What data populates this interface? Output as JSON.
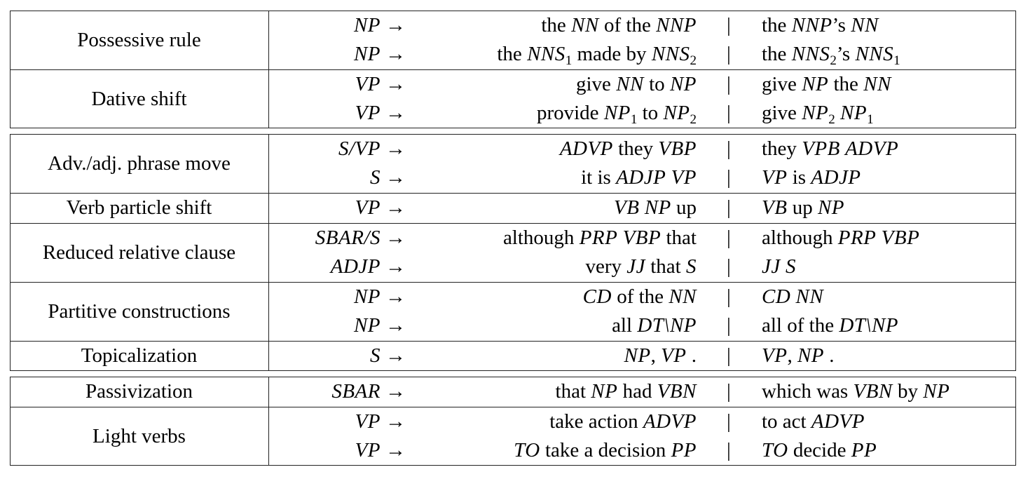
{
  "arrow": "→",
  "separator": "|",
  "groups": [
    {
      "rules": [
        {
          "name": "Possessive rule",
          "lines": [
            {
              "lhs": [
                {
                  "math": "NP"
                }
              ],
              "source": [
                "the ",
                {
                  "math": "NN"
                },
                " of the ",
                {
                  "math": "NNP"
                }
              ],
              "target": [
                "the ",
                {
                  "math": "NNP"
                },
                "’s ",
                {
                  "math": "NN"
                }
              ]
            },
            {
              "lhs": [
                {
                  "math": "NP"
                }
              ],
              "source": [
                "the ",
                {
                  "math": "NNS",
                  "sub": "1"
                },
                " made by ",
                {
                  "math": "NNS",
                  "sub": "2"
                }
              ],
              "target": [
                "the ",
                {
                  "math": "NNS",
                  "sub": "2"
                },
                "’s ",
                {
                  "math": "NNS",
                  "sub": "1"
                }
              ]
            }
          ]
        },
        {
          "name": "Dative shift",
          "lines": [
            {
              "lhs": [
                {
                  "math": "VP"
                }
              ],
              "source": [
                "give ",
                {
                  "math": "NN"
                },
                " to ",
                {
                  "math": "NP"
                }
              ],
              "target": [
                "give ",
                {
                  "math": "NP"
                },
                " the ",
                {
                  "math": "NN"
                }
              ]
            },
            {
              "lhs": [
                {
                  "math": "VP"
                }
              ],
              "source": [
                "provide ",
                {
                  "math": "NP",
                  "sub": "1"
                },
                " to ",
                {
                  "math": "NP",
                  "sub": "2"
                }
              ],
              "target": [
                "give ",
                {
                  "math": "NP",
                  "sub": "2"
                },
                " ",
                {
                  "math": "NP",
                  "sub": "1"
                }
              ]
            }
          ]
        }
      ]
    },
    {
      "rules": [
        {
          "name": "Adv./adj. phrase move",
          "lines": [
            {
              "lhs": [
                {
                  "math": "S/VP"
                }
              ],
              "source": [
                {
                  "math": "ADVP"
                },
                " they ",
                {
                  "math": "VBP"
                }
              ],
              "target": [
                "they ",
                {
                  "math": "VPB"
                },
                " ",
                {
                  "math": "ADVP"
                }
              ]
            },
            {
              "lhs": [
                {
                  "math": "S"
                }
              ],
              "source": [
                "it is ",
                {
                  "math": "ADJP"
                },
                " ",
                {
                  "math": "VP"
                }
              ],
              "target": [
                {
                  "math": "VP"
                },
                " is ",
                {
                  "math": "ADJP"
                }
              ]
            }
          ]
        },
        {
          "name": "Verb particle shift",
          "lines": [
            {
              "lhs": [
                {
                  "math": "VP"
                }
              ],
              "source": [
                {
                  "math": "VB"
                },
                " ",
                {
                  "math": "NP"
                },
                " up"
              ],
              "target": [
                {
                  "math": "VB"
                },
                " up ",
                {
                  "math": "NP"
                }
              ]
            }
          ]
        },
        {
          "name": "Reduced relative clause",
          "lines": [
            {
              "lhs": [
                {
                  "math": "SBAR/S"
                }
              ],
              "source": [
                "although ",
                {
                  "math": "PRP"
                },
                " ",
                {
                  "math": "VBP"
                },
                " that"
              ],
              "target": [
                "although ",
                {
                  "math": "PRP"
                },
                " ",
                {
                  "math": "VBP"
                }
              ]
            },
            {
              "lhs": [
                {
                  "math": "ADJP"
                }
              ],
              "source": [
                "very ",
                {
                  "math": "JJ"
                },
                " that ",
                {
                  "math": "S"
                }
              ],
              "target": [
                {
                  "math": "JJ"
                },
                " ",
                {
                  "math": "S"
                }
              ]
            }
          ]
        },
        {
          "name": "Partitive constructions",
          "lines": [
            {
              "lhs": [
                {
                  "math": "NP"
                }
              ],
              "source": [
                {
                  "math": "CD"
                },
                " of the ",
                {
                  "math": "NN"
                }
              ],
              "target": [
                {
                  "math": "CD"
                },
                " ",
                {
                  "math": "NN"
                }
              ]
            },
            {
              "lhs": [
                {
                  "math": "NP"
                }
              ],
              "source": [
                "all ",
                {
                  "math": "DT\\NP"
                }
              ],
              "target": [
                "all of the ",
                {
                  "math": "DT\\NP"
                }
              ]
            }
          ]
        },
        {
          "name": "Topicalization",
          "lines": [
            {
              "lhs": [
                {
                  "math": "S"
                }
              ],
              "source": [
                {
                  "math": "NP"
                },
                ", ",
                {
                  "math": "VP"
                },
                " ."
              ],
              "target": [
                {
                  "math": "VP"
                },
                ", ",
                {
                  "math": "NP"
                },
                " ."
              ]
            }
          ]
        }
      ]
    },
    {
      "rules": [
        {
          "name": "Passivization",
          "lines": [
            {
              "lhs": [
                {
                  "math": "SBAR"
                }
              ],
              "source": [
                "that ",
                {
                  "math": "NP"
                },
                " had ",
                {
                  "math": "VBN"
                }
              ],
              "target": [
                "which was ",
                {
                  "math": "VBN"
                },
                " by ",
                {
                  "math": "NP"
                }
              ]
            }
          ]
        },
        {
          "name": "Light verbs",
          "lines": [
            {
              "lhs": [
                {
                  "math": "VP"
                }
              ],
              "source": [
                "take action ",
                {
                  "math": "ADVP"
                }
              ],
              "target": [
                "to act ",
                {
                  "math": "ADVP"
                }
              ]
            },
            {
              "lhs": [
                {
                  "math": "VP"
                }
              ],
              "source": [
                {
                  "math": "TO"
                },
                " take a decision ",
                {
                  "math": "PP"
                }
              ],
              "target": [
                {
                  "math": "TO"
                },
                " decide ",
                {
                  "math": "PP"
                }
              ]
            }
          ]
        }
      ]
    }
  ]
}
